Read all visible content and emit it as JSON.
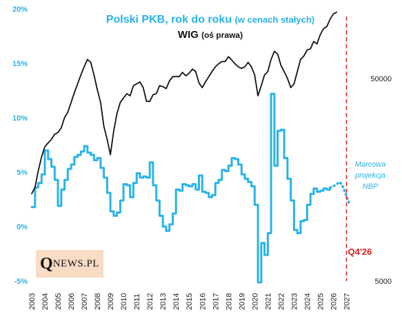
{
  "chart_data": {
    "type": "line",
    "title_main": "Polski PKB, rok do roku",
    "title_main_note": "(w cenach stałych)",
    "title_secondary": "WIG",
    "title_secondary_note": "(oś prawa)",
    "y_left": {
      "range": [
        -5,
        20
      ],
      "ticks": [
        -5,
        0,
        5,
        10,
        15,
        20
      ],
      "tick_labels": [
        "-5%",
        "0%",
        "5%",
        "10%",
        "15%",
        "20%"
      ]
    },
    "y_right": {
      "scale": "log",
      "range": [
        5000,
        110000
      ],
      "tick_labels": [
        "5000",
        "50000"
      ]
    },
    "x_axis": {
      "range": [
        2003,
        2027.5
      ],
      "tick_labels": [
        "2003",
        "2004",
        "2005",
        "2006",
        "2007",
        "2008",
        "2009",
        "2010",
        "2011",
        "2012",
        "2013",
        "2014",
        "2015",
        "2016",
        "2017",
        "2018",
        "2019",
        "2020",
        "2021",
        "2022",
        "2023",
        "2024",
        "2025",
        "2026",
        "2027"
      ]
    },
    "series": [
      {
        "name": "Polski PKB, rok do roku",
        "axis": "left",
        "color": "#29b3e8",
        "x": [
          2003.0,
          2003.25,
          2003.5,
          2003.75,
          2004.0,
          2004.25,
          2004.5,
          2004.75,
          2005.0,
          2005.25,
          2005.5,
          2005.75,
          2006.0,
          2006.25,
          2006.5,
          2006.75,
          2007.0,
          2007.25,
          2007.5,
          2007.75,
          2008.0,
          2008.25,
          2008.5,
          2008.75,
          2009.0,
          2009.25,
          2009.5,
          2009.75,
          2010.0,
          2010.25,
          2010.5,
          2010.75,
          2011.0,
          2011.25,
          2011.5,
          2011.75,
          2012.0,
          2012.25,
          2012.5,
          2012.75,
          2013.0,
          2013.25,
          2013.5,
          2013.75,
          2014.0,
          2014.25,
          2014.5,
          2014.75,
          2015.0,
          2015.25,
          2015.5,
          2015.75,
          2016.0,
          2016.25,
          2016.5,
          2016.75,
          2017.0,
          2017.25,
          2017.5,
          2017.75,
          2018.0,
          2018.25,
          2018.5,
          2018.75,
          2019.0,
          2019.25,
          2019.5,
          2019.75,
          2020.0,
          2020.25,
          2020.5,
          2020.75,
          2021.0,
          2021.25,
          2021.5,
          2021.75,
          2022.0,
          2022.25,
          2022.5,
          2022.75,
          2023.0,
          2023.25,
          2023.5,
          2023.75,
          2024.0,
          2024.25,
          2024.5,
          2024.75,
          2025.0,
          2025.25,
          2025.5,
          2025.75
        ],
        "values": [
          1.8,
          3.6,
          4.0,
          4.8,
          7.0,
          6.2,
          5.5,
          4.3,
          1.9,
          3.4,
          4.3,
          5.3,
          5.7,
          6.4,
          6.6,
          6.9,
          7.4,
          6.8,
          6.6,
          6.1,
          6.3,
          5.4,
          4.5,
          3.1,
          1.4,
          1.0,
          1.3,
          2.4,
          3.9,
          3.8,
          2.7,
          4.0,
          4.9,
          4.5,
          4.6,
          4.5,
          5.9,
          3.8,
          2.4,
          1.0,
          0.0,
          -0.4,
          0.2,
          1.2,
          3.4,
          3.3,
          3.9,
          3.8,
          3.7,
          3.9,
          3.4,
          4.7,
          3.2,
          3.1,
          2.7,
          2.9,
          4.0,
          4.3,
          5.2,
          5.1,
          5.6,
          6.3,
          6.2,
          5.7,
          4.8,
          4.4,
          4.1,
          3.7,
          2.0,
          -8.4,
          -1.5,
          -2.6,
          -0.6,
          12.2,
          5.6,
          8.8,
          8.9,
          6.3,
          4.4,
          2.4,
          -0.3,
          -0.6,
          0.5,
          0.6,
          2.0,
          3.0,
          3.5,
          3.2,
          3.3,
          3.5,
          3.4,
          3.6
        ]
      },
      {
        "name": "Marcowa projekcja NBP",
        "axis": "left",
        "color": "#29b3e8",
        "style": "dotted",
        "x": [
          2025.75,
          2026.0,
          2026.25,
          2026.5,
          2026.75,
          2027.0,
          2027.25
        ],
        "values": [
          3.6,
          3.7,
          3.9,
          4.1,
          3.6,
          2.8,
          2.0
        ]
      },
      {
        "name": "WIG",
        "axis": "right",
        "color": "#111111",
        "x": [
          2003.0,
          2003.25,
          2003.5,
          2003.75,
          2004.0,
          2004.25,
          2004.5,
          2004.75,
          2005.0,
          2005.25,
          2005.5,
          2005.75,
          2006.0,
          2006.25,
          2006.5,
          2006.75,
          2007.0,
          2007.25,
          2007.5,
          2007.75,
          2008.0,
          2008.25,
          2008.5,
          2008.75,
          2009.0,
          2009.25,
          2009.5,
          2009.75,
          2010.0,
          2010.25,
          2010.5,
          2010.75,
          2011.0,
          2011.25,
          2011.5,
          2011.75,
          2012.0,
          2012.25,
          2012.5,
          2012.75,
          2013.0,
          2013.25,
          2013.5,
          2013.75,
          2014.0,
          2014.25,
          2014.5,
          2014.75,
          2015.0,
          2015.25,
          2015.5,
          2015.75,
          2016.0,
          2016.25,
          2016.5,
          2016.75,
          2017.0,
          2017.25,
          2017.5,
          2017.75,
          2018.0,
          2018.25,
          2018.5,
          2018.75,
          2019.0,
          2019.25,
          2019.5,
          2019.75,
          2020.0,
          2020.25,
          2020.5,
          2020.75,
          2021.0,
          2021.25,
          2021.5,
          2021.75,
          2022.0,
          2022.25,
          2022.5,
          2022.75,
          2023.0,
          2023.25,
          2023.5,
          2023.75,
          2024.0,
          2024.25,
          2024.5,
          2024.75,
          2025.0,
          2025.25,
          2025.5,
          2025.75,
          2026.0,
          2026.25
        ],
        "values": [
          13500,
          14500,
          17500,
          20500,
          23000,
          24000,
          25000,
          26500,
          27000,
          28500,
          32000,
          34000,
          38000,
          42500,
          47000,
          52000,
          57000,
          62000,
          60000,
          52000,
          44000,
          38000,
          29000,
          25000,
          21000,
          27500,
          33500,
          38000,
          40000,
          42000,
          41000,
          46000,
          47000,
          48000,
          45000,
          38500,
          38500,
          41500,
          42000,
          46000,
          45500,
          44500,
          48500,
          51000,
          51000,
          51000,
          53500,
          51500,
          53000,
          55500,
          54000,
          47500,
          45000,
          48000,
          51000,
          54000,
          57000,
          59000,
          60500,
          60500,
          64000,
          61500,
          59000,
          57000,
          56000,
          57000,
          60000,
          57000,
          52000,
          41000,
          46000,
          52000,
          54000,
          62000,
          68000,
          66000,
          58000,
          54000,
          50000,
          45000,
          47000,
          54000,
          62000,
          64500,
          69000,
          70000,
          76000,
          74000,
          82000,
          88000,
          90000,
          98000,
          104000,
          106000
        ]
      }
    ],
    "annotations": {
      "projection_label": [
        "Marcowa",
        "projekcja",
        "NBP"
      ],
      "vertical_line": {
        "x": 2027.0,
        "label": "Q4'26",
        "color": "#e0201b"
      }
    },
    "grid": false,
    "legend": "none"
  },
  "logo": {
    "q": "Q",
    "rest": "NEWS.PL"
  },
  "colors": {
    "gdp": "#29b3e8",
    "wig": "#111111",
    "marker": "#e0201b"
  }
}
